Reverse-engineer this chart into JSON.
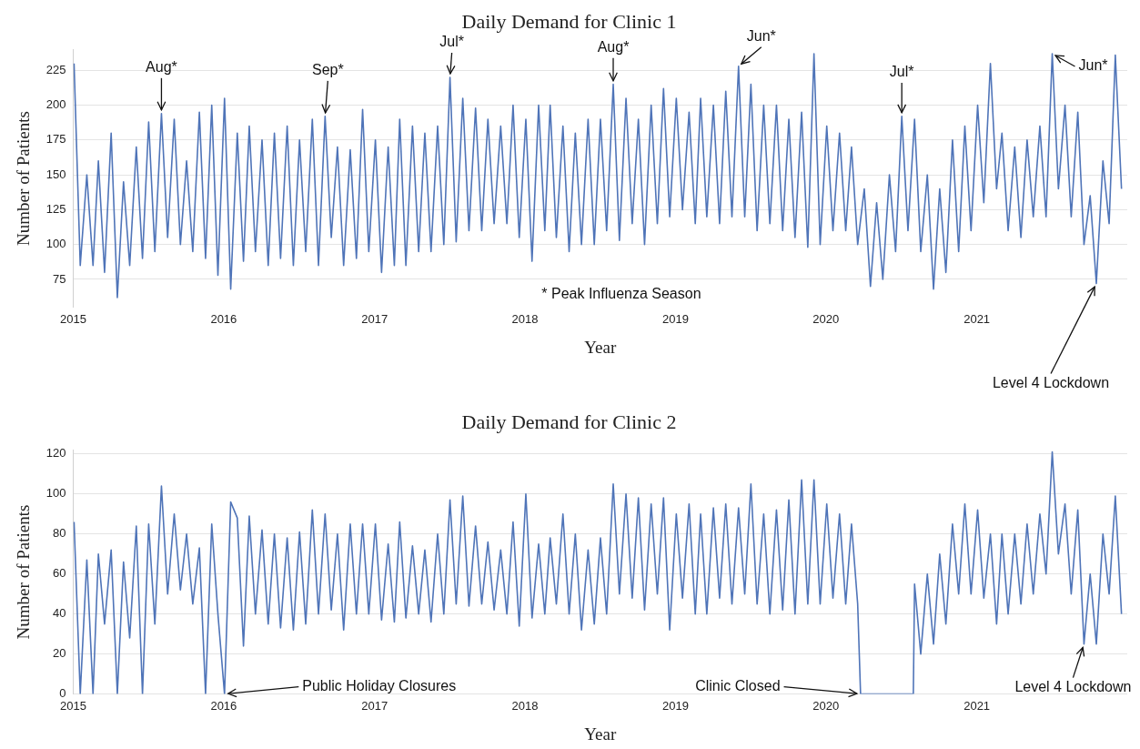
{
  "chart_data": [
    {
      "type": "line",
      "title": "Daily Demand for Clinic 1",
      "xlabel": "Year",
      "ylabel": "Number of Patients",
      "xlim": [
        "2015-01-01",
        "2022-01-01"
      ],
      "xticks": [
        {
          "value": "2015-01-01",
          "label": "2015"
        },
        {
          "value": "2016-01-01",
          "label": "2016"
        },
        {
          "value": "2017-01-01",
          "label": "2017"
        },
        {
          "value": "2018-01-01",
          "label": "2018"
        },
        {
          "value": "2019-01-01",
          "label": "2019"
        },
        {
          "value": "2020-01-01",
          "label": "2020"
        },
        {
          "value": "2021-01-01",
          "label": "2021"
        }
      ],
      "ylim": [
        55,
        240
      ],
      "yticks": [
        75,
        100,
        125,
        150,
        175,
        200,
        225
      ],
      "grid": "y",
      "legend": false,
      "marker": "none",
      "series": [
        {
          "color": "#4f74b8",
          "x": [
            "2015-01-03",
            "2015-01-18",
            "2015-02-03",
            "2015-02-18",
            "2015-03-03",
            "2015-03-18",
            "2015-04-03",
            "2015-04-18",
            "2015-05-03",
            "2015-05-18",
            "2015-06-03",
            "2015-06-18",
            "2015-07-03",
            "2015-07-18",
            "2015-08-03",
            "2015-08-18",
            "2015-09-03",
            "2015-09-18",
            "2015-10-03",
            "2015-10-18",
            "2015-11-03",
            "2015-11-18",
            "2015-12-03",
            "2015-12-18",
            "2016-01-03",
            "2016-01-18",
            "2016-02-03",
            "2016-02-18",
            "2016-03-03",
            "2016-03-18",
            "2016-04-03",
            "2016-04-18",
            "2016-05-03",
            "2016-05-18",
            "2016-06-03",
            "2016-06-18",
            "2016-07-03",
            "2016-07-18",
            "2016-08-03",
            "2016-08-18",
            "2016-09-03",
            "2016-09-18",
            "2016-10-03",
            "2016-10-18",
            "2016-11-03",
            "2016-11-18",
            "2016-12-03",
            "2016-12-18",
            "2017-01-03",
            "2017-01-18",
            "2017-02-03",
            "2017-02-18",
            "2017-03-03",
            "2017-03-18",
            "2017-04-03",
            "2017-04-18",
            "2017-05-03",
            "2017-05-18",
            "2017-06-03",
            "2017-06-18",
            "2017-07-03",
            "2017-07-18",
            "2017-08-03",
            "2017-08-18",
            "2017-09-03",
            "2017-09-18",
            "2017-10-03",
            "2017-10-18",
            "2017-11-03",
            "2017-11-18",
            "2017-12-03",
            "2017-12-18",
            "2018-01-03",
            "2018-01-18",
            "2018-02-03",
            "2018-02-18",
            "2018-03-03",
            "2018-03-18",
            "2018-04-03",
            "2018-04-18",
            "2018-05-03",
            "2018-05-18",
            "2018-06-03",
            "2018-06-18",
            "2018-07-03",
            "2018-07-18",
            "2018-08-03",
            "2018-08-18",
            "2018-09-03",
            "2018-09-18",
            "2018-10-03",
            "2018-10-18",
            "2018-11-03",
            "2018-11-18",
            "2018-12-03",
            "2018-12-18",
            "2019-01-03",
            "2019-01-18",
            "2019-02-03",
            "2019-02-18",
            "2019-03-03",
            "2019-03-18",
            "2019-04-03",
            "2019-04-18",
            "2019-05-03",
            "2019-05-18",
            "2019-06-03",
            "2019-06-18",
            "2019-07-03",
            "2019-07-18",
            "2019-08-03",
            "2019-08-18",
            "2019-09-03",
            "2019-09-18",
            "2019-10-03",
            "2019-10-18",
            "2019-11-03",
            "2019-11-18",
            "2019-12-03",
            "2019-12-18",
            "2020-01-03",
            "2020-01-18",
            "2020-02-03",
            "2020-02-18",
            "2020-03-03",
            "2020-03-18",
            "2020-04-03",
            "2020-04-18",
            "2020-05-03",
            "2020-05-18",
            "2020-06-03",
            "2020-06-18",
            "2020-07-03",
            "2020-07-18",
            "2020-08-03",
            "2020-08-18",
            "2020-09-03",
            "2020-09-18",
            "2020-10-03",
            "2020-10-18",
            "2020-11-03",
            "2020-11-18",
            "2020-12-03",
            "2020-12-18",
            "2021-01-03",
            "2021-01-18",
            "2021-02-03",
            "2021-02-18",
            "2021-03-03",
            "2021-03-18",
            "2021-04-03",
            "2021-04-18",
            "2021-05-03",
            "2021-05-18",
            "2021-06-03",
            "2021-06-18",
            "2021-07-03",
            "2021-07-18",
            "2021-08-03",
            "2021-08-18",
            "2021-09-03",
            "2021-09-18",
            "2021-10-03",
            "2021-10-18",
            "2021-11-03",
            "2021-11-18",
            "2021-12-03",
            "2021-12-18"
          ],
          "values": [
            230,
            85,
            150,
            85,
            160,
            80,
            180,
            62,
            145,
            85,
            170,
            90,
            188,
            95,
            194,
            105,
            190,
            100,
            160,
            95,
            195,
            90,
            200,
            78,
            205,
            68,
            180,
            88,
            185,
            95,
            175,
            85,
            180,
            90,
            185,
            85,
            175,
            95,
            190,
            85,
            192,
            105,
            170,
            85,
            168,
            90,
            197,
            95,
            175,
            80,
            170,
            85,
            190,
            85,
            185,
            95,
            180,
            95,
            185,
            100,
            220,
            102,
            205,
            110,
            198,
            110,
            190,
            115,
            185,
            115,
            200,
            105,
            190,
            88,
            200,
            110,
            200,
            105,
            185,
            95,
            180,
            100,
            190,
            100,
            190,
            110,
            215,
            103,
            205,
            115,
            190,
            100,
            200,
            115,
            212,
            120,
            205,
            125,
            195,
            115,
            205,
            120,
            200,
            115,
            210,
            120,
            228,
            120,
            215,
            110,
            200,
            115,
            200,
            110,
            190,
            105,
            195,
            98,
            237,
            100,
            185,
            110,
            180,
            110,
            170,
            100,
            140,
            70,
            130,
            75,
            150,
            95,
            192,
            110,
            190,
            95,
            150,
            68,
            140,
            80,
            175,
            95,
            185,
            110,
            200,
            130,
            230,
            140,
            180,
            110,
            170,
            105,
            175,
            120,
            185,
            120,
            237,
            140,
            200,
            120,
            195,
            100,
            135,
            72,
            160,
            115,
            236,
            140
          ]
        }
      ],
      "annotations": [
        {
          "text": "Aug*",
          "x": "2015-08-03",
          "y": 194
        },
        {
          "text": "Sep*",
          "x": "2016-09-03",
          "y": 192
        },
        {
          "text": "Jul*",
          "x": "2017-07-03",
          "y": 220
        },
        {
          "text": "Aug*",
          "x": "2018-08-03",
          "y": 215
        },
        {
          "text": "Jun*",
          "x": "2019-06-03",
          "y": 228
        },
        {
          "text": "Jul*",
          "x": "2020-07-03",
          "y": 192
        },
        {
          "text": "Jun*",
          "x": "2021-07-03",
          "y": 237
        },
        "* Peak Influenza Season",
        {
          "text": "Level 4 Lockdown",
          "x": "2021-10-18",
          "y": 72
        }
      ]
    },
    {
      "type": "line",
      "title": "Daily Demand for Clinic 2",
      "xlabel": "Year",
      "ylabel": "Number of Patients",
      "xlim": [
        "2015-01-01",
        "2022-01-01"
      ],
      "xticks": [
        {
          "value": "2015-01-01",
          "label": "2015"
        },
        {
          "value": "2016-01-01",
          "label": "2016"
        },
        {
          "value": "2017-01-01",
          "label": "2017"
        },
        {
          "value": "2018-01-01",
          "label": "2018"
        },
        {
          "value": "2019-01-01",
          "label": "2019"
        },
        {
          "value": "2020-01-01",
          "label": "2020"
        },
        {
          "value": "2021-01-01",
          "label": "2021"
        }
      ],
      "ylim": [
        0,
        122
      ],
      "yticks": [
        0,
        20,
        40,
        60,
        80,
        100,
        120
      ],
      "grid": "y",
      "legend": false,
      "marker": "none",
      "series": [
        {
          "color": "#4f74b8",
          "x": [
            "2015-01-03",
            "2015-01-18",
            "2015-02-03",
            "2015-02-18",
            "2015-03-03",
            "2015-03-18",
            "2015-04-03",
            "2015-04-18",
            "2015-05-03",
            "2015-05-18",
            "2015-06-03",
            "2015-06-18",
            "2015-07-03",
            "2015-07-18",
            "2015-08-03",
            "2015-08-18",
            "2015-09-03",
            "2015-09-18",
            "2015-10-03",
            "2015-10-18",
            "2015-11-03",
            "2015-11-18",
            "2015-12-03",
            "2015-12-18",
            "2016-01-03",
            "2016-01-18",
            "2016-02-03",
            "2016-02-18",
            "2016-03-03",
            "2016-03-18",
            "2016-04-03",
            "2016-04-18",
            "2016-05-03",
            "2016-05-18",
            "2016-06-03",
            "2016-06-18",
            "2016-07-03",
            "2016-07-18",
            "2016-08-03",
            "2016-08-18",
            "2016-09-03",
            "2016-09-18",
            "2016-10-03",
            "2016-10-18",
            "2016-11-03",
            "2016-11-18",
            "2016-12-03",
            "2016-12-18",
            "2017-01-03",
            "2017-01-18",
            "2017-02-03",
            "2017-02-18",
            "2017-03-03",
            "2017-03-18",
            "2017-04-03",
            "2017-04-18",
            "2017-05-03",
            "2017-05-18",
            "2017-06-03",
            "2017-06-18",
            "2017-07-03",
            "2017-07-18",
            "2017-08-03",
            "2017-08-18",
            "2017-09-03",
            "2017-09-18",
            "2017-10-03",
            "2017-10-18",
            "2017-11-03",
            "2017-11-18",
            "2017-12-03",
            "2017-12-18",
            "2018-01-03",
            "2018-01-18",
            "2018-02-03",
            "2018-02-18",
            "2018-03-03",
            "2018-03-18",
            "2018-04-03",
            "2018-04-18",
            "2018-05-03",
            "2018-05-18",
            "2018-06-03",
            "2018-06-18",
            "2018-07-03",
            "2018-07-18",
            "2018-08-03",
            "2018-08-18",
            "2018-09-03",
            "2018-09-18",
            "2018-10-03",
            "2018-10-18",
            "2018-11-03",
            "2018-11-18",
            "2018-12-03",
            "2018-12-18",
            "2019-01-03",
            "2019-01-18",
            "2019-02-03",
            "2019-02-18",
            "2019-03-03",
            "2019-03-18",
            "2019-04-03",
            "2019-04-18",
            "2019-05-03",
            "2019-05-18",
            "2019-06-03",
            "2019-06-18",
            "2019-07-03",
            "2019-07-18",
            "2019-08-03",
            "2019-08-18",
            "2019-09-03",
            "2019-09-18",
            "2019-10-03",
            "2019-10-18",
            "2019-11-03",
            "2019-11-18",
            "2019-12-03",
            "2019-12-18",
            "2020-01-03",
            "2020-01-18",
            "2020-02-03",
            "2020-02-18",
            "2020-03-03",
            "2020-03-18",
            "2020-03-25",
            "2020-07-31",
            "2020-08-03",
            "2020-08-18",
            "2020-09-03",
            "2020-09-18",
            "2020-10-03",
            "2020-10-18",
            "2020-11-03",
            "2020-11-18",
            "2020-12-03",
            "2020-12-18",
            "2021-01-03",
            "2021-01-18",
            "2021-02-03",
            "2021-02-18",
            "2021-03-03",
            "2021-03-18",
            "2021-04-03",
            "2021-04-18",
            "2021-05-03",
            "2021-05-18",
            "2021-06-03",
            "2021-06-18",
            "2021-07-03",
            "2021-07-18",
            "2021-08-03",
            "2021-08-18",
            "2021-09-03",
            "2021-09-18",
            "2021-10-03",
            "2021-10-18",
            "2021-11-03",
            "2021-11-18",
            "2021-12-03",
            "2021-12-18"
          ],
          "values": [
            86,
            0,
            67,
            0,
            70,
            35,
            72,
            0,
            66,
            28,
            84,
            0,
            85,
            35,
            104,
            50,
            90,
            52,
            80,
            45,
            73,
            0,
            85,
            40,
            0,
            96,
            88,
            24,
            89,
            40,
            82,
            35,
            80,
            33,
            78,
            32,
            81,
            35,
            92,
            40,
            90,
            42,
            80,
            32,
            85,
            40,
            85,
            40,
            85,
            37,
            75,
            36,
            86,
            38,
            74,
            40,
            72,
            36,
            80,
            40,
            97,
            45,
            99,
            44,
            84,
            45,
            76,
            42,
            72,
            40,
            86,
            34,
            100,
            38,
            75,
            40,
            78,
            45,
            90,
            40,
            80,
            32,
            72,
            35,
            78,
            40,
            105,
            50,
            100,
            48,
            98,
            42,
            95,
            50,
            98,
            32,
            90,
            48,
            95,
            40,
            90,
            40,
            93,
            48,
            95,
            45,
            93,
            50,
            105,
            45,
            90,
            40,
            92,
            42,
            97,
            40,
            107,
            45,
            107,
            45,
            95,
            48,
            90,
            45,
            85,
            45,
            0,
            0,
            55,
            20,
            60,
            25,
            70,
            35,
            85,
            50,
            95,
            50,
            92,
            48,
            80,
            35,
            80,
            40,
            80,
            45,
            85,
            50,
            90,
            60,
            121,
            70,
            95,
            50,
            92,
            25,
            60,
            25,
            80,
            50,
            99,
            40
          ]
        }
      ],
      "annotations": [
        {
          "text": "Public Holiday Closures",
          "x": "2016-01-03",
          "y": 0
        },
        {
          "text": "Clinic Closed",
          "x": "2020-03-25",
          "y": 0
        },
        {
          "text": "Level 4 Lockdown",
          "x": "2021-09-18",
          "y": 25
        }
      ]
    }
  ]
}
